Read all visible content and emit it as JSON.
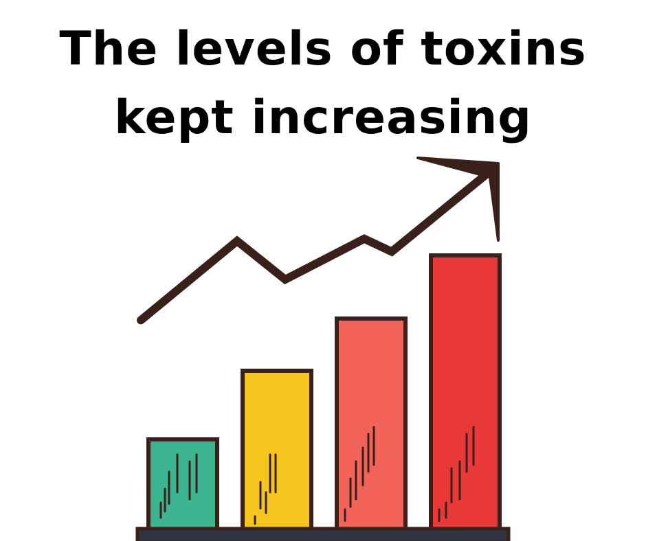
{
  "title": {
    "line1": "The levels of toxins",
    "line2": "kept increasing"
  },
  "chart_data": {
    "type": "bar",
    "title": "The levels of toxins kept increasing",
    "categories": [
      "",
      "",
      "",
      ""
    ],
    "values": [
      33,
      58,
      77,
      100
    ],
    "ylim": [
      0,
      100
    ],
    "grid": false,
    "legend": "none",
    "colors": [
      "#3db591",
      "#f5c71e",
      "#f2645a",
      "#e83837"
    ],
    "outline_color": "#3a201b",
    "trend_arrow": {
      "direction": "up",
      "color": "#3a201b",
      "values": [
        30,
        67,
        49,
        68,
        62,
        100
      ]
    }
  }
}
